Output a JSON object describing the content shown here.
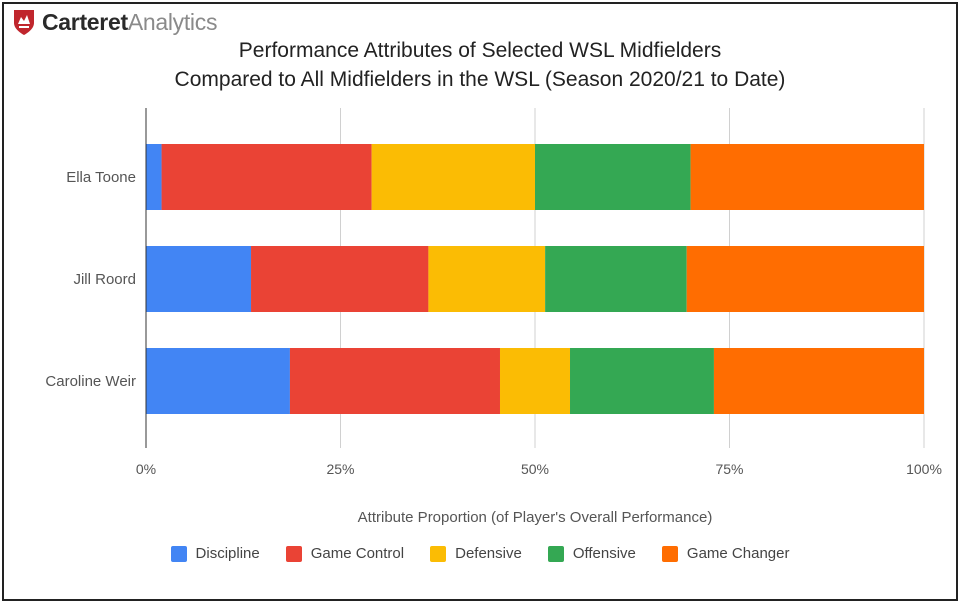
{
  "brand": {
    "name_strong": "Carteret",
    "name_light": "Analytics",
    "color": "#c0262d"
  },
  "chart_data": {
    "type": "bar",
    "orientation": "horizontal",
    "stacked": true,
    "title_line1": "Performance Attributes of Selected WSL Midfielders",
    "title_line2": "Compared to All Midfielders in the WSL (Season 2020/21 to Date)",
    "xlabel": "Attribute Proportion (of Player's Overall Performance)",
    "ylabel": "",
    "xlim": [
      0,
      100
    ],
    "x_ticks": [
      0,
      25,
      50,
      75,
      100
    ],
    "x_tick_labels": [
      "0%",
      "25%",
      "50%",
      "75%",
      "100%"
    ],
    "grid": true,
    "legend_position": "bottom",
    "categories": [
      "Ella Toone",
      "Jill Roord",
      "Caroline Weir"
    ],
    "series": [
      {
        "name": "Discipline",
        "color": "#4285f4",
        "values": [
          2,
          13.5,
          18.5
        ]
      },
      {
        "name": "Game Control",
        "color": "#ea4335",
        "values": [
          27,
          22.8,
          27
        ]
      },
      {
        "name": "Defensive",
        "color": "#fbbc04",
        "values": [
          21,
          15,
          9
        ]
      },
      {
        "name": "Offensive",
        "color": "#34a853",
        "values": [
          20,
          18.2,
          18.5
        ]
      },
      {
        "name": "Game Changer",
        "color": "#ff6d01",
        "values": [
          30,
          30.5,
          27
        ]
      }
    ]
  }
}
